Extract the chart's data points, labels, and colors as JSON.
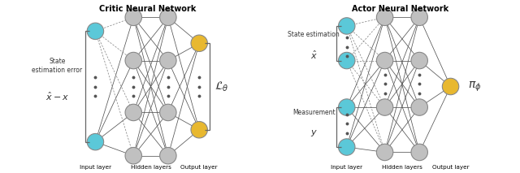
{
  "fig_width": 6.4,
  "fig_height": 2.13,
  "dpi": 100,
  "bg_color": "#ffffff",
  "colors": {
    "blue": "#5bc8d8",
    "gray": "#c0c0c0",
    "yellow": "#e8b830",
    "edge_solid": "#555555",
    "edge_dashed": "#888888",
    "dot": "#555555",
    "brace": "#666666",
    "text": "#333333"
  },
  "critic_title": "Critic Neural Network",
  "actor_title": "Actor Neural Network",
  "critic_left_label_line1": "State",
  "critic_left_label_line2": "estimation error",
  "critic_left_label_line3": "$\\hat{x} - x$",
  "critic_right_label": "$\\mathcal{L}_{\\theta}$",
  "actor_top_label_line1": "State estimation",
  "actor_top_label_line2": "$\\hat{x}$",
  "actor_bot_label_line1": "Measurement",
  "actor_bot_label_line2": "$y$",
  "actor_right_label": "$\\pi_{\\phi}$",
  "bottom_labels": [
    "Input layer",
    "Hidden layers",
    "Output layer"
  ]
}
